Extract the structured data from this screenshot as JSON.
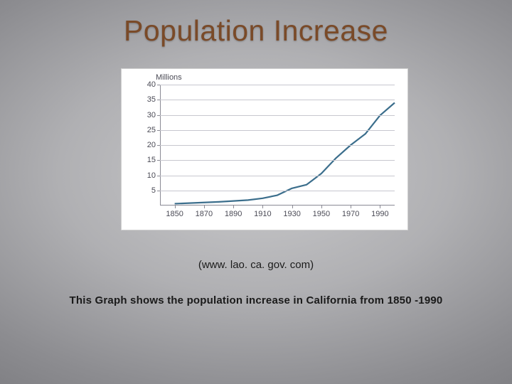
{
  "title": {
    "text": "Population Increase",
    "color": "#7a4a28",
    "fontsize": 41
  },
  "citation": "(www. lao. ca. gov. com)",
  "caption": "This Graph shows the population increase in California from 1850 -1990",
  "chart": {
    "type": "line",
    "y_unit_label": "Millions",
    "background_color": "#ffffff",
    "grid_color": "#c7c7cf",
    "axis_color": "#8a8a94",
    "tick_label_color": "#4a4a55",
    "tick_fontsize": 11,
    "line_color": "#3b6e8c",
    "line_width": 2.2,
    "xlim": [
      1840,
      2000
    ],
    "ylim": [
      0,
      40
    ],
    "x_ticks": [
      1850,
      1870,
      1890,
      1910,
      1930,
      1950,
      1970,
      1990
    ],
    "y_ticks": [
      5,
      10,
      15,
      20,
      25,
      30,
      35,
      40
    ],
    "series": {
      "x": [
        1850,
        1860,
        1870,
        1880,
        1890,
        1900,
        1910,
        1920,
        1930,
        1940,
        1950,
        1960,
        1970,
        1980,
        1990,
        2000
      ],
      "y": [
        0.6,
        0.8,
        1.0,
        1.2,
        1.5,
        1.8,
        2.4,
        3.4,
        5.7,
        6.9,
        10.6,
        15.7,
        20.0,
        23.7,
        29.8,
        34.0
      ]
    }
  }
}
